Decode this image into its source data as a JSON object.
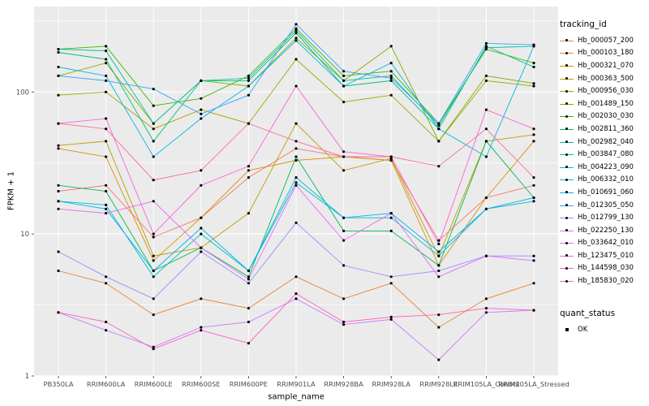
{
  "figure": {
    "background": "#FFFFFF",
    "panel_background": "#EBEBEB",
    "grid_color": "#FFFFFF",
    "tick_text_color": "#4D4D4D",
    "point_color": "#000000"
  },
  "chart_data": {
    "type": "line",
    "title": "",
    "xlabel": "sample_name",
    "ylabel": "FPKM + 1",
    "y_scale": "log10",
    "ylim": [
      1,
      400
    ],
    "y_ticks": [
      1,
      10,
      100
    ],
    "grid": true,
    "legend": {
      "position": "right",
      "color_title": "tracking_id",
      "shape_title": "quant_status",
      "shape_items": [
        {
          "label": "OK"
        }
      ]
    },
    "categories": [
      "PB350LA",
      "RRIM600LA",
      "RRIM600LE",
      "RRIM600SE",
      "RRIM600PE",
      "RRIM901LA",
      "RRIM928BA",
      "RRIM928LA",
      "RRIM928LE",
      "RRIM105LA_Control",
      "RRIM105LA_Stressed"
    ],
    "series": [
      {
        "name": "Hb_000057_200",
        "color": "#F8766D",
        "values": [
          20,
          22,
          9.5,
          13,
          25,
          40,
          35,
          33,
          9,
          18,
          22
        ]
      },
      {
        "name": "Hb_000103_180",
        "color": "#EA8331",
        "values": [
          5.5,
          4.5,
          2.7,
          3.5,
          3,
          5,
          3.5,
          4.5,
          2.2,
          3.5,
          4.5
        ]
      },
      {
        "name": "Hb_000321_070",
        "color": "#D89000",
        "values": [
          40,
          35,
          6.5,
          13,
          28,
          33,
          35,
          33,
          6,
          18,
          45
        ]
      },
      {
        "name": "Hb_000363_500",
        "color": "#C09B00",
        "values": [
          42,
          45,
          7,
          8,
          14,
          60,
          28,
          34,
          7,
          45,
          50
        ]
      },
      {
        "name": "Hb_000956_030",
        "color": "#A3A500",
        "values": [
          95,
          100,
          55,
          75,
          60,
          170,
          85,
          95,
          45,
          120,
          110
        ]
      },
      {
        "name": "Hb_001489_150",
        "color": "#7CAE00",
        "values": [
          130,
          160,
          60,
          120,
          110,
          240,
          120,
          210,
          45,
          130,
          115
        ]
      },
      {
        "name": "Hb_002030_030",
        "color": "#39B600",
        "values": [
          200,
          210,
          80,
          90,
          130,
          280,
          130,
          140,
          60,
          200,
          160
        ]
      },
      {
        "name": "Hb_002811_360",
        "color": "#00BB4E",
        "values": [
          22,
          20,
          5.5,
          8,
          5,
          35,
          10.5,
          10.5,
          6,
          45,
          18
        ]
      },
      {
        "name": "Hb_002982_040",
        "color": "#00BF7D",
        "values": [
          190,
          170,
          45,
          120,
          120,
          260,
          110,
          120,
          55,
          210,
          150
        ]
      },
      {
        "name": "Hb_003847_080",
        "color": "#00C1A3",
        "values": [
          200,
          195,
          60,
          120,
          125,
          270,
          120,
          130,
          58,
          205,
          210
        ]
      },
      {
        "name": "Hb_004223_090",
        "color": "#00BFC4",
        "values": [
          17,
          16,
          5,
          10,
          5.5,
          25,
          13,
          13,
          7,
          15,
          17
        ]
      },
      {
        "name": "Hb_006332_010",
        "color": "#00BAE0",
        "values": [
          150,
          130,
          35,
          65,
          110,
          230,
          110,
          160,
          55,
          35,
          210
        ]
      },
      {
        "name": "Hb_010691_060",
        "color": "#00B0F6",
        "values": [
          17,
          15,
          5.5,
          11,
          5.5,
          23,
          13,
          14,
          7.5,
          15,
          18
        ]
      },
      {
        "name": "Hb_012305_050",
        "color": "#35A2FF",
        "values": [
          130,
          120,
          105,
          70,
          95,
          300,
          140,
          125,
          60,
          220,
          215
        ]
      },
      {
        "name": "Hb_012799_130",
        "color": "#9590FF",
        "values": [
          7.5,
          5,
          3.5,
          7.5,
          4.5,
          12,
          6,
          5,
          5.5,
          7,
          7
        ]
      },
      {
        "name": "Hb_022250_130",
        "color": "#C77CFF",
        "values": [
          2.8,
          2.1,
          1.6,
          2.2,
          2.4,
          3.5,
          2.3,
          2.5,
          1.3,
          2.8,
          2.9
        ]
      },
      {
        "name": "Hb_033642_010",
        "color": "#E76BF3",
        "values": [
          15,
          14,
          17,
          8,
          4.8,
          22,
          9,
          14,
          5,
          7,
          6.5
        ]
      },
      {
        "name": "Hb_123475_010",
        "color": "#FA62DB",
        "values": [
          60,
          65,
          10,
          22,
          30,
          110,
          38,
          35,
          8.5,
          75,
          55
        ]
      },
      {
        "name": "Hb_144598_030",
        "color": "#FF62BC",
        "values": [
          2.8,
          2.4,
          1.55,
          2.1,
          1.7,
          3.8,
          2.4,
          2.6,
          2.7,
          3,
          2.9
        ]
      },
      {
        "name": "Hb_185830_020",
        "color": "#FF6A98",
        "values": [
          60,
          55,
          24,
          28,
          60,
          45,
          35,
          35,
          30,
          55,
          25
        ]
      }
    ]
  }
}
